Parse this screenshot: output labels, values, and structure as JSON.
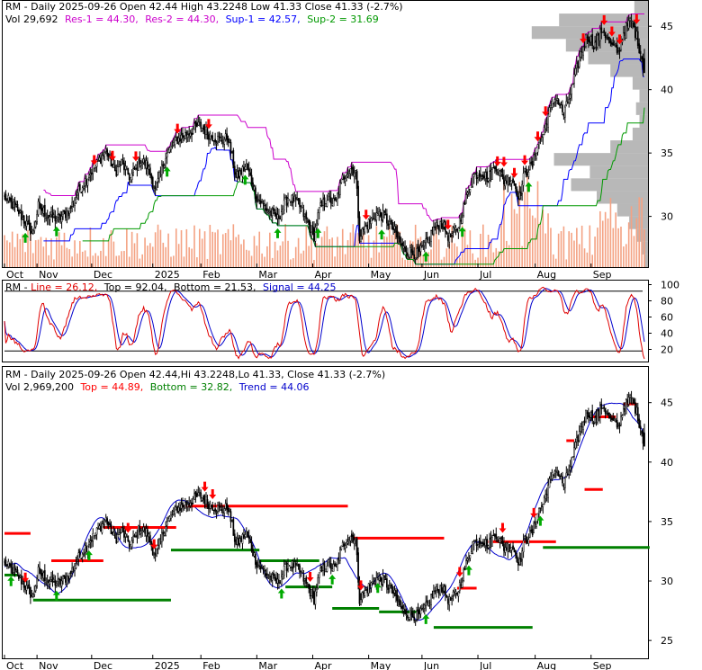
{
  "colors": {
    "bg": "#ffffff",
    "frame": "#000000",
    "candle": "#000000",
    "res": "#cc00cc",
    "sup1": "#0000ff",
    "sup2": "#009900",
    "volume_bar": "#f4a283",
    "profile": "#a0a0a0",
    "profile_light": "#d8d8d8",
    "arrow_down": "#ff0000",
    "arrow_up": "#00aa00",
    "line": "#e00000",
    "signal": "#0000cc",
    "band": "#000000",
    "top_seg": "#ff0000",
    "bottom_seg": "#008000",
    "trend": "#0000cc"
  },
  "chart_data": [
    {
      "type": "candlestick",
      "panel": "price-top",
      "header": {
        "prefix": "RM - Daily 2025-09-26 Open 42.44  High 43.2248  Low 41.33  Close 41.33 (-2.7%)",
        "vol": "Vol 29,692",
        "res1": "Res-1 = 44.30,",
        "res2": "Res-2 = 44.30,",
        "sup1": "Sup-1 = 42.57,",
        "sup2": "Sup-2 = 31.69"
      },
      "x_labels": [
        "Oct",
        "Nov",
        "Dec",
        "2025",
        "Feb",
        "Mar",
        "Apr",
        "May",
        "Jun",
        "Jul",
        "Aug",
        "Sep"
      ],
      "x_label_days": [
        0,
        25,
        67,
        114,
        151,
        194,
        237,
        280,
        321,
        364,
        408,
        451
      ],
      "y_ticks": [
        30,
        35,
        40,
        45
      ],
      "ylim": [
        26,
        47
      ],
      "keypoints": [
        [
          0,
          31.5
        ],
        [
          10,
          30.5
        ],
        [
          18,
          29.2
        ],
        [
          22,
          28.7
        ],
        [
          26,
          30.8
        ],
        [
          34,
          30.0
        ],
        [
          42,
          29.8
        ],
        [
          50,
          30.5
        ],
        [
          56,
          31.8
        ],
        [
          63,
          33.0
        ],
        [
          70,
          34.0
        ],
        [
          78,
          35.2
        ],
        [
          85,
          33.5
        ],
        [
          90,
          34.2
        ],
        [
          97,
          33.0
        ],
        [
          104,
          34.5
        ],
        [
          110,
          34.0
        ],
        [
          116,
          32.0
        ],
        [
          124,
          34.8
        ],
        [
          132,
          36.0
        ],
        [
          140,
          36.5
        ],
        [
          150,
          37.2
        ],
        [
          158,
          36.4
        ],
        [
          166,
          36.0
        ],
        [
          172,
          36.2
        ],
        [
          178,
          33.0
        ],
        [
          186,
          34.0
        ],
        [
          194,
          31.5
        ],
        [
          202,
          30.5
        ],
        [
          210,
          29.8
        ],
        [
          218,
          31.5
        ],
        [
          226,
          31.0
        ],
        [
          233,
          29.5
        ],
        [
          238,
          28.5
        ],
        [
          242,
          30.5
        ],
        [
          248,
          31.5
        ],
        [
          254,
          31.0
        ],
        [
          260,
          33.0
        ],
        [
          266,
          33.8
        ],
        [
          270,
          33.5
        ],
        [
          273,
          28.5
        ],
        [
          280,
          29.5
        ],
        [
          286,
          30.2
        ],
        [
          292,
          30.0
        ],
        [
          300,
          28.8
        ],
        [
          306,
          27.5
        ],
        [
          312,
          27.2
        ],
        [
          318,
          27.0
        ],
        [
          324,
          27.8
        ],
        [
          330,
          29.0
        ],
        [
          336,
          29.5
        ],
        [
          342,
          28.3
        ],
        [
          348,
          29.0
        ],
        [
          354,
          31.0
        ],
        [
          360,
          33.2
        ],
        [
          366,
          33.5
        ],
        [
          372,
          33.0
        ],
        [
          378,
          34.0
        ],
        [
          384,
          32.8
        ],
        [
          390,
          33.0
        ],
        [
          396,
          31.5
        ],
        [
          400,
          33.5
        ],
        [
          406,
          34.0
        ],
        [
          410,
          35.8
        ],
        [
          414,
          36.5
        ],
        [
          418,
          38.0
        ],
        [
          424,
          39.5
        ],
        [
          430,
          38.0
        ],
        [
          436,
          40.0
        ],
        [
          442,
          42.5
        ],
        [
          448,
          44.3
        ],
        [
          454,
          43.5
        ],
        [
          460,
          44.8
        ],
        [
          466,
          43.5
        ],
        [
          472,
          43.0
        ],
        [
          476,
          44.5
        ],
        [
          482,
          45.5
        ],
        [
          486,
          44.2
        ],
        [
          490,
          42.5
        ],
        [
          492,
          41.33
        ]
      ],
      "volume_profile": [
        [
          26.5,
          2
        ],
        [
          27.5,
          4
        ],
        [
          28.5,
          7
        ],
        [
          29.5,
          11
        ],
        [
          30.5,
          18
        ],
        [
          31.5,
          30
        ],
        [
          32.5,
          45
        ],
        [
          33.5,
          34
        ],
        [
          34.5,
          55
        ],
        [
          35.5,
          22
        ],
        [
          36.5,
          9
        ],
        [
          37.5,
          5
        ],
        [
          38.5,
          7
        ],
        [
          39.5,
          5
        ],
        [
          40.5,
          9
        ],
        [
          41.5,
          22
        ],
        [
          42.5,
          35
        ],
        [
          43.5,
          48
        ],
        [
          44.5,
          68
        ],
        [
          45.5,
          52
        ],
        [
          46.5,
          8
        ]
      ],
      "down_arrow_days": [
        69,
        83,
        101,
        133,
        157,
        278,
        341,
        379,
        384,
        392,
        400,
        410,
        416,
        445,
        461,
        467,
        473,
        486
      ],
      "up_arrow_days": [
        40,
        16,
        125,
        185,
        210,
        241,
        290,
        324,
        352,
        403
      ]
    },
    {
      "type": "line",
      "panel": "oscillator",
      "header": {
        "prefix": "RM - ",
        "line": "Line = 26.12,",
        "top": "Top = 92.04,",
        "bottom": "Bottom = 21.53,",
        "signal": "Signal = 44.25"
      },
      "y_ticks": [
        20,
        40,
        60,
        80,
        100
      ],
      "ylim": [
        5,
        105
      ],
      "top_band": 92,
      "bottom_band": 18
    },
    {
      "type": "candlestick",
      "panel": "price-bottom",
      "header": {
        "prefix": "RM - Daily 2025-09-26 Open 42.44,Hi 43.2248,Lo 41.33, Close 41.33 (-2.7%)",
        "vol": "Vol 2,969,200",
        "top": "Top = 44.89,",
        "bottom": "Bottom = 32.82,",
        "trend": "Trend = 44.06"
      },
      "x_labels": [
        "Oct",
        "Nov",
        "Dec",
        "2025",
        "Feb",
        "Mar",
        "Apr",
        "May",
        "Jun",
        "Jul",
        "Aug",
        "Sep"
      ],
      "y_ticks": [
        25,
        30,
        35,
        40,
        45
      ],
      "ylim": [
        23.5,
        48
      ],
      "top_segments": [
        [
          0,
          20,
          34.0
        ],
        [
          36,
          76,
          31.7
        ],
        [
          76,
          132,
          34.5
        ],
        [
          136,
          264,
          36.3
        ],
        [
          268,
          338,
          33.6
        ],
        [
          348,
          363,
          29.4
        ],
        [
          372,
          424,
          33.3
        ],
        [
          432,
          438,
          41.8
        ],
        [
          446,
          460,
          37.7
        ],
        [
          452,
          470,
          43.8
        ],
        [
          476,
          486,
          44.89
        ]
      ],
      "bottom_segments": [
        [
          0,
          10,
          30.5
        ],
        [
          22,
          128,
          28.4
        ],
        [
          128,
          196,
          32.6
        ],
        [
          196,
          242,
          31.7
        ],
        [
          216,
          252,
          29.5
        ],
        [
          252,
          288,
          27.7
        ],
        [
          288,
          320,
          27.4
        ],
        [
          330,
          406,
          26.1
        ],
        [
          414,
          496,
          32.82
        ]
      ],
      "down_arrow_days": [
        16,
        95,
        115,
        154,
        160,
        274,
        235,
        350,
        383,
        407
      ],
      "up_arrow_days": [
        5,
        40,
        65,
        213,
        252,
        287,
        324,
        357,
        412
      ]
    }
  ]
}
